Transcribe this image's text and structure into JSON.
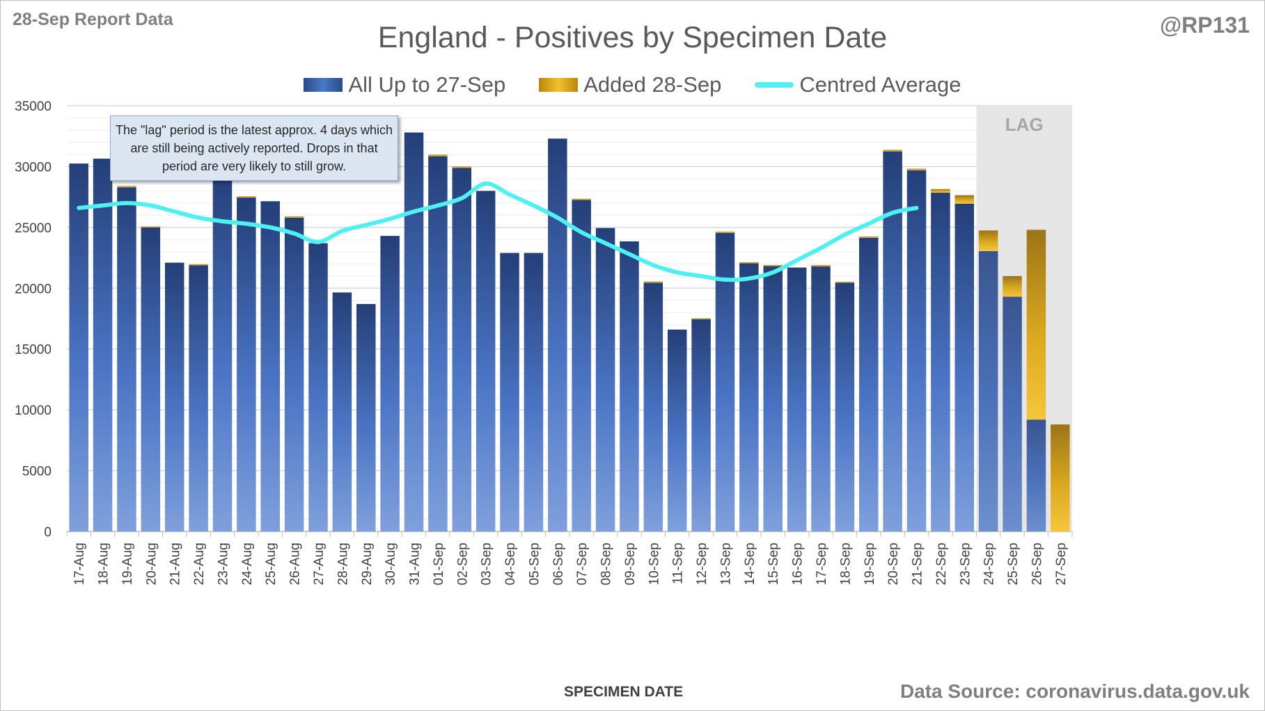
{
  "report_label": "28-Sep Report Data",
  "author": "@RP131",
  "source": "Data Source: coronavirus.data.gov.uk",
  "note": "The \"lag\" period is the latest approx. 4 days which are still being actively reported. Drops in that period are very likely to still grow.",
  "lag_label": "LAG",
  "colors": {
    "series_base": "#3f64b0",
    "series_added": "#e6b422",
    "average": "#4ff0f2",
    "lag_shade": "#e6e6e6"
  },
  "chart_data": {
    "type": "bar",
    "stacked": true,
    "title": "England - Positives by Specimen Date",
    "xlabel": "SPECIMEN DATE",
    "ylabel": "",
    "ylim": [
      0,
      35000
    ],
    "yticks": [
      0,
      5000,
      10000,
      15000,
      20000,
      25000,
      30000,
      35000
    ],
    "grid": true,
    "legend_position": "top-center",
    "categories": [
      "17-Aug",
      "18-Aug",
      "19-Aug",
      "20-Aug",
      "21-Aug",
      "22-Aug",
      "23-Aug",
      "24-Aug",
      "25-Aug",
      "26-Aug",
      "27-Aug",
      "28-Aug",
      "29-Aug",
      "30-Aug",
      "31-Aug",
      "01-Sep",
      "02-Sep",
      "03-Sep",
      "04-Sep",
      "05-Sep",
      "06-Sep",
      "07-Sep",
      "08-Sep",
      "09-Sep",
      "10-Sep",
      "11-Sep",
      "12-Sep",
      "13-Sep",
      "14-Sep",
      "15-Sep",
      "16-Sep",
      "17-Sep",
      "18-Sep",
      "19-Sep",
      "20-Sep",
      "21-Sep",
      "22-Sep",
      "23-Sep",
      "24-Sep",
      "25-Sep",
      "26-Sep",
      "27-Sep"
    ],
    "lag_categories": [
      "24-Sep",
      "25-Sep",
      "26-Sep",
      "27-Sep"
    ],
    "series": [
      {
        "name": "All Up to 27-Sep",
        "values": [
          30250,
          30650,
          28300,
          25000,
          22100,
          21900,
          29600,
          27450,
          27150,
          25800,
          23700,
          19650,
          18700,
          24300,
          32800,
          30850,
          29900,
          28000,
          22900,
          22900,
          32300,
          27250,
          24950,
          23850,
          20450,
          16600,
          17450,
          24550,
          22050,
          21850,
          21700,
          21800,
          20450,
          24150,
          31250,
          29700,
          27850,
          26950,
          23050,
          19300,
          9200,
          0
        ]
      },
      {
        "name": "Added 28-Sep",
        "values": [
          0,
          0,
          100,
          80,
          0,
          70,
          0,
          100,
          0,
          100,
          0,
          0,
          0,
          0,
          0,
          120,
          100,
          0,
          0,
          0,
          0,
          100,
          0,
          0,
          100,
          0,
          80,
          100,
          80,
          50,
          0,
          100,
          80,
          100,
          120,
          120,
          300,
          700,
          1700,
          1700,
          15600,
          8800
        ]
      },
      {
        "name": "Centred Average",
        "type": "line",
        "values": [
          26600,
          26800,
          27000,
          26800,
          26300,
          25800,
          25500,
          25300,
          25000,
          24500,
          23800,
          24700,
          25200,
          25700,
          26300,
          26800,
          27400,
          28600,
          27700,
          26800,
          25800,
          24600,
          23700,
          22800,
          21900,
          21300,
          21000,
          20700,
          20800,
          21300,
          22300,
          23300,
          24400,
          25300,
          26200,
          26600,
          null,
          null,
          null,
          null,
          null,
          null
        ]
      }
    ]
  }
}
